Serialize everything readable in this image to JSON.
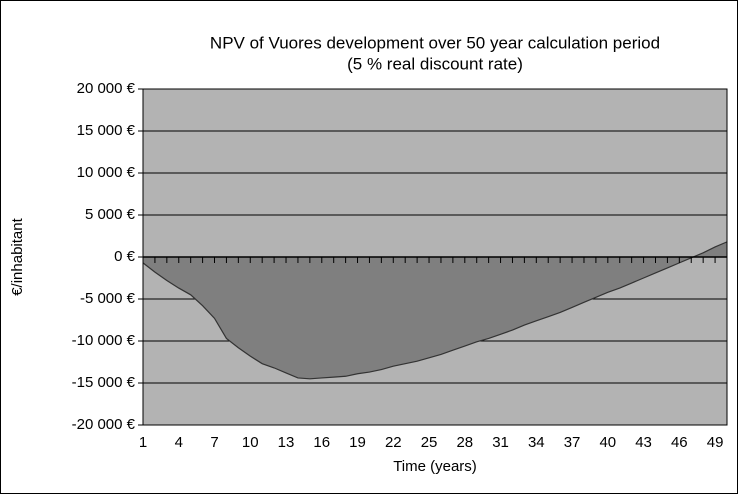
{
  "chart_data": {
    "type": "area",
    "title": "NPV of Vuores development over 50 year calculation period",
    "subtitle": "(5 % real discount rate)",
    "x_label": "Time (years)",
    "y_label": "€/inhabitant",
    "x": [
      1,
      2,
      3,
      4,
      5,
      6,
      7,
      8,
      9,
      10,
      11,
      12,
      13,
      14,
      15,
      16,
      17,
      18,
      19,
      20,
      21,
      22,
      23,
      24,
      25,
      26,
      27,
      28,
      29,
      30,
      31,
      32,
      33,
      34,
      35,
      36,
      37,
      38,
      39,
      40,
      41,
      42,
      43,
      44,
      45,
      46,
      47,
      48,
      49,
      50
    ],
    "series": [
      {
        "name": "NPV",
        "color": "#7f7f7f",
        "values": [
          -700,
          -1800,
          -2800,
          -3700,
          -4500,
          -5800,
          -7300,
          -9700,
          -10800,
          -11800,
          -12700,
          -13200,
          -13800,
          -14400,
          -14500,
          -14400,
          -14300,
          -14200,
          -13900,
          -13700,
          -13400,
          -13000,
          -12700,
          -12400,
          -12000,
          -11600,
          -11100,
          -10600,
          -10100,
          -9700,
          -9200,
          -8700,
          -8100,
          -7600,
          -7100,
          -6600,
          -6000,
          -5400,
          -4800,
          -4200,
          -3700,
          -3100,
          -2500,
          -1900,
          -1300,
          -700,
          -100,
          500,
          1200,
          1800
        ]
      }
    ],
    "xlim": [
      1,
      50
    ],
    "xticks": [
      1,
      4,
      7,
      10,
      13,
      16,
      19,
      22,
      25,
      28,
      31,
      34,
      37,
      40,
      43,
      46,
      49
    ],
    "ylim": [
      -20000,
      20000
    ],
    "yticks": [
      {
        "value": -20000,
        "label": "-20 000 €"
      },
      {
        "value": -15000,
        "label": "-15 000 €"
      },
      {
        "value": -10000,
        "label": "-10 000 €"
      },
      {
        "value": -5000,
        "label": "-5 000 €"
      },
      {
        "value": 0,
        "label": "0 €"
      },
      {
        "value": 5000,
        "label": "5 000 €"
      },
      {
        "value": 10000,
        "label": "10 000 €"
      },
      {
        "value": 15000,
        "label": "15 000 €"
      },
      {
        "value": 20000,
        "label": "20 000 €"
      }
    ],
    "grid": true,
    "plot_background": "#b3b3b3"
  }
}
